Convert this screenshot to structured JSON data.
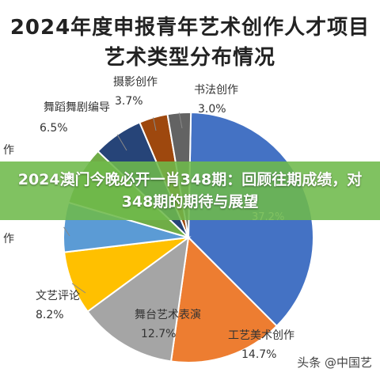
{
  "title": {
    "line1": "2024年度申报青年艺术创作人才项目",
    "line2": "艺术类型分布情况"
  },
  "banner": {
    "text": "2024澳门今晚必开一肖348期：回顾往期成绩，对348期的期待与展望"
  },
  "watermark": {
    "text": "头条 @中国艺"
  },
  "chart_data": {
    "type": "pie",
    "title": "2024年度申报青年艺术创作人才项目 艺术类型分布情况",
    "slices": [
      {
        "label": "",
        "value": 37.2,
        "value_text": "37.2%",
        "color": "#4472c4"
      },
      {
        "label": "工艺美术创作",
        "value": 14.7,
        "value_text": "14.7%",
        "color": "#ed7d31"
      },
      {
        "label": "舞台艺术表演",
        "value": 12.7,
        "value_text": "12.7%",
        "color": "#a5a5a5"
      },
      {
        "label": "文艺评论",
        "value": 8.2,
        "value_text": "8.2%",
        "color": "#ffc000"
      },
      {
        "label": "作",
        "value": 6.4,
        "value_text": "",
        "color": "#5b9bd5"
      },
      {
        "label": "作",
        "value": 7.6,
        "value_text": "",
        "color": "#70ad47"
      },
      {
        "label": "舞蹈舞剧编导",
        "value": 6.5,
        "value_text": "6.5%",
        "color": "#264478"
      },
      {
        "label": "摄影创作",
        "value": 3.7,
        "value_text": "3.7%",
        "color": "#9e480e"
      },
      {
        "label": "书法创作",
        "value": 3.0,
        "value_text": "3.0%",
        "color": "#636363"
      }
    ]
  }
}
